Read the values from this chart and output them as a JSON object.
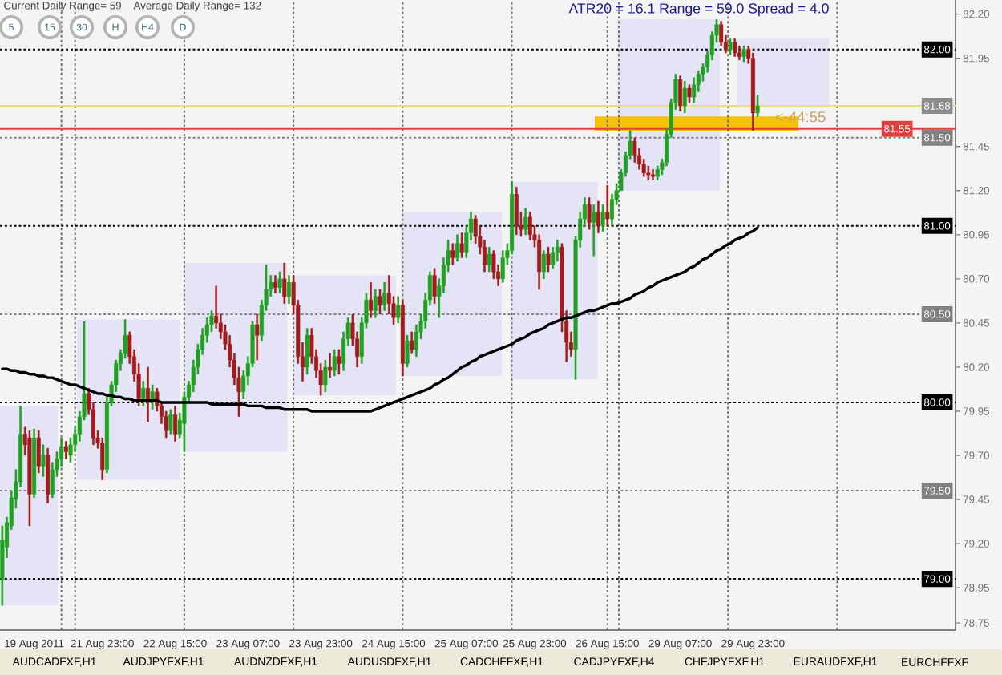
{
  "chart_data": {
    "type": "candlestick",
    "title": "ATR20 = 16.1 Range = 59.0 Spread = 4.0",
    "annotations": [
      "Current Daily Range= 59",
      "Average Daily Range= 132",
      "5",
      "15",
      "30",
      "H",
      "H4",
      "D",
      "<-44:55",
      "AUDCADFXF,H1",
      "AUDJPYFXF,H1",
      "AUDNZDFXF,H1",
      "AUDUSDFXF,H1",
      "CADCHFFXF,H1",
      "CADJPYFXF,H4",
      "CHFJPYFXF,H1",
      "EURAUDFXF,H1",
      "EURCHFFXF"
    ],
    "categories": [
      null,
      null,
      null,
      null,
      null,
      null,
      null,
      "19 Aug 2011",
      null,
      null,
      null,
      null,
      null,
      null,
      null,
      null,
      null,
      null,
      null,
      null,
      null,
      null,
      "21 Aug 23:00",
      null,
      null,
      null,
      null,
      null,
      null,
      null,
      null,
      null,
      null,
      null,
      null,
      null,
      null,
      null,
      "22 Aug 15:00",
      null,
      null,
      null,
      null,
      null,
      null,
      null,
      null,
      null,
      null,
      null,
      null,
      null,
      null,
      null,
      "23 Aug 07:00",
      null,
      null,
      null,
      null,
      null,
      null,
      null,
      null,
      null,
      null,
      null,
      null,
      null,
      null,
      null,
      "23 Aug 23:00",
      null,
      null,
      null,
      null,
      null,
      null,
      null,
      null,
      null,
      null,
      null,
      null,
      null,
      null,
      null,
      "24 Aug 15:00",
      null,
      null,
      null,
      null,
      null,
      null,
      null,
      null,
      null,
      null,
      null,
      null,
      null,
      null,
      null,
      "25 Aug 07:00",
      null,
      null,
      null,
      null,
      null,
      null,
      null,
      null,
      null,
      null,
      null,
      null,
      null,
      null,
      "25 Aug 23:00",
      null,
      null,
      null,
      null,
      null,
      null,
      null,
      null,
      null,
      null,
      null,
      null,
      null,
      null,
      null,
      "26 Aug 15:00",
      null,
      null,
      null,
      null,
      null,
      null,
      null,
      null,
      null,
      null,
      null,
      null,
      null,
      null,
      null,
      "29 Aug 07:00",
      null,
      null,
      null,
      null,
      null,
      null,
      null,
      null,
      null,
      null,
      null,
      null,
      null,
      null,
      null,
      "29 Aug 23:00",
      null,
      null,
      null,
      null,
      null,
      null,
      null,
      null,
      null,
      null,
      null,
      null,
      null,
      null,
      null,
      null,
      null,
      null,
      null,
      null,
      null,
      null,
      null,
      null,
      null,
      null,
      null,
      null,
      null,
      null,
      null,
      null,
      null,
      null,
      null,
      null,
      null,
      null,
      null,
      null,
      null,
      null,
      null,
      null
    ],
    "ylim": [
      78.71,
      82.28
    ],
    "yticks": [
      {
        "value": 82.2,
        "label": "82.20"
      },
      {
        "value": 81.95,
        "label": "81.95"
      },
      {
        "value": 81.45,
        "label": "81.45"
      },
      {
        "value": 81.2,
        "label": "81.20"
      },
      {
        "value": 80.95,
        "label": "80.95"
      },
      {
        "value": 80.7,
        "label": "80.70"
      },
      {
        "value": 80.45,
        "label": "80.45"
      },
      {
        "value": 80.2,
        "label": "80.20"
      },
      {
        "value": 79.95,
        "label": "79.95"
      },
      {
        "value": 79.7,
        "label": "79.70"
      },
      {
        "value": 79.45,
        "label": "79.45"
      },
      {
        "value": 79.2,
        "label": "79.20"
      },
      {
        "value": 78.95,
        "label": "78.95"
      },
      {
        "value": 78.75,
        "label": "78.75"
      }
    ],
    "ref_lines": [
      {
        "axis": "y",
        "value": 82.0,
        "label": "82.00",
        "color": "#000000",
        "line_style": "dotted"
      },
      {
        "axis": "y",
        "value": 81.5,
        "label": "81.50",
        "color": "#808080",
        "line_style": "dotted"
      },
      {
        "axis": "y",
        "value": 81.0,
        "label": "81.00",
        "color": "#000000",
        "line_style": "dotted"
      },
      {
        "axis": "y",
        "value": 80.5,
        "label": "80.50",
        "color": "#808080",
        "line_style": "dotted"
      },
      {
        "axis": "y",
        "value": 80.0,
        "label": "80.00",
        "color": "#000000",
        "line_style": "dotted"
      },
      {
        "axis": "y",
        "value": 79.5,
        "label": "79.50",
        "color": "#808080",
        "line_style": "dotted"
      },
      {
        "axis": "y",
        "value": 79.0,
        "label": "79.00",
        "color": "#000000",
        "line_style": "dotted"
      },
      {
        "axis": "y",
        "value": 81.68,
        "label": "81.68",
        "color": "#eedc82",
        "line_style": "solid"
      },
      {
        "axis": "y",
        "value": 81.55,
        "label": "81.55",
        "color": "#e04040",
        "line_style": "solid"
      }
    ],
    "bands": [
      {
        "axis": "y",
        "from": 78.85,
        "to": 79.98,
        "color": "#e4e4f6"
      },
      {
        "axis": "y",
        "from": 79.56,
        "to": 80.47,
        "color": "#e4e4f6"
      },
      {
        "axis": "y",
        "from": 79.72,
        "to": 80.79,
        "color": "#e4e4f6"
      },
      {
        "axis": "y",
        "from": 80.04,
        "to": 80.72,
        "color": "#e4e4f6"
      },
      {
        "axis": "y",
        "from": 80.15,
        "to": 81.08,
        "color": "#e4e4f6"
      },
      {
        "axis": "y",
        "from": 80.13,
        "to": 81.25,
        "color": "#e4e4f6"
      },
      {
        "axis": "y",
        "from": 81.2,
        "to": 82.17,
        "color": "#e4e4f6"
      },
      {
        "axis": "y",
        "from": 81.67,
        "to": 82.06,
        "color": "#e4e4f6"
      },
      {
        "axis": "y",
        "from": 81.54,
        "to": 81.62,
        "color": "#f4c20d"
      }
    ],
    "series": [
      {
        "ohlc": [
          [
            79.0,
            79.3,
            78.85,
            79.22
          ],
          [
            79.18,
            79.35,
            79.12,
            79.32
          ],
          [
            79.3,
            79.5,
            79.28,
            79.46
          ],
          [
            79.45,
            79.62,
            79.4,
            79.55
          ],
          [
            79.55,
            79.98,
            79.52,
            79.82
          ],
          [
            79.82,
            79.86,
            79.7,
            79.76
          ],
          [
            79.8,
            79.84,
            79.3,
            79.48
          ],
          [
            79.48,
            79.85,
            79.46,
            79.8
          ],
          [
            79.8,
            79.84,
            79.6,
            79.64
          ],
          [
            79.64,
            79.76,
            79.58,
            79.7
          ],
          [
            79.7,
            79.74,
            79.43,
            79.48
          ],
          [
            79.48,
            79.66,
            79.46,
            79.62
          ],
          [
            79.62,
            79.72,
            79.58,
            79.68
          ],
          [
            79.68,
            79.8,
            79.64,
            79.75
          ],
          [
            79.75,
            79.78,
            79.68,
            79.72
          ],
          [
            79.7,
            79.8,
            79.66,
            79.76
          ],
          [
            79.76,
            79.86,
            79.72,
            79.82
          ],
          [
            79.82,
            79.95,
            79.78,
            79.92
          ],
          [
            79.92,
            80.46,
            79.9,
            80.05
          ],
          [
            80.05,
            80.08,
            79.93,
            79.96
          ],
          [
            79.96,
            80.0,
            79.76,
            79.8
          ],
          [
            79.8,
            79.84,
            79.74,
            79.77
          ],
          [
            79.77,
            79.8,
            79.56,
            79.62
          ],
          [
            79.62,
            80.03,
            79.6,
            80.0
          ],
          [
            80.0,
            80.12,
            79.98,
            80.1
          ],
          [
            80.1,
            80.24,
            80.06,
            80.22
          ],
          [
            80.22,
            80.3,
            80.18,
            80.28
          ],
          [
            80.28,
            80.47,
            80.25,
            80.38
          ],
          [
            80.38,
            80.4,
            80.22,
            80.26
          ],
          [
            80.26,
            80.3,
            80.12,
            80.16
          ],
          [
            80.16,
            80.22,
            79.98,
            80.02
          ],
          [
            80.02,
            80.12,
            79.98,
            80.08
          ],
          [
            80.08,
            80.2,
            79.89,
            80.0
          ],
          [
            80.0,
            80.1,
            79.96,
            80.06
          ],
          [
            80.06,
            80.08,
            79.95,
            79.98
          ],
          [
            79.98,
            80.0,
            79.88,
            79.92
          ],
          [
            79.92,
            79.95,
            79.8,
            79.84
          ],
          [
            79.84,
            79.96,
            79.82,
            79.93
          ],
          [
            79.93,
            79.98,
            79.78,
            79.82
          ],
          [
            79.82,
            79.94,
            79.8,
            79.9
          ],
          [
            79.88,
            80.06,
            79.72,
            80.03
          ],
          [
            80.03,
            80.12,
            80.0,
            80.1
          ],
          [
            80.1,
            80.24,
            80.06,
            80.2
          ],
          [
            80.2,
            80.33,
            80.16,
            80.3
          ],
          [
            80.3,
            80.42,
            80.27,
            80.38
          ],
          [
            80.38,
            80.48,
            80.34,
            80.44
          ],
          [
            80.44,
            80.52,
            80.4,
            80.49
          ],
          [
            80.49,
            80.66,
            80.42,
            80.45
          ],
          [
            80.45,
            80.5,
            80.36,
            80.4
          ],
          [
            80.4,
            80.44,
            80.3,
            80.33
          ],
          [
            80.33,
            80.38,
            80.2,
            80.24
          ],
          [
            80.24,
            80.28,
            80.1,
            80.14
          ],
          [
            80.14,
            80.2,
            79.92,
            80.06
          ],
          [
            80.06,
            80.18,
            80.02,
            80.15
          ],
          [
            80.15,
            80.26,
            80.1,
            80.22
          ],
          [
            80.22,
            80.46,
            80.2,
            80.44
          ],
          [
            80.44,
            80.5,
            80.24,
            80.38
          ],
          [
            80.38,
            80.58,
            80.35,
            80.55
          ],
          [
            80.55,
            80.78,
            80.52,
            80.64
          ],
          [
            80.64,
            80.72,
            80.6,
            80.68
          ],
          [
            80.68,
            80.72,
            80.62,
            80.65
          ],
          [
            80.65,
            80.74,
            80.62,
            80.7
          ],
          [
            80.7,
            80.79,
            80.56,
            80.6
          ],
          [
            80.6,
            80.72,
            80.56,
            80.68
          ],
          [
            80.68,
            80.72,
            80.5,
            80.55
          ],
          [
            80.55,
            80.58,
            80.22,
            80.26
          ],
          [
            80.26,
            80.34,
            80.12,
            80.2
          ],
          [
            80.2,
            80.42,
            80.16,
            80.38
          ],
          [
            80.38,
            80.42,
            80.22,
            80.26
          ],
          [
            80.26,
            80.3,
            80.14,
            80.18
          ],
          [
            80.18,
            80.22,
            80.04,
            80.1
          ],
          [
            80.1,
            80.24,
            80.06,
            80.2
          ],
          [
            80.2,
            80.28,
            80.14,
            80.18
          ],
          [
            80.18,
            80.3,
            80.15,
            80.26
          ],
          [
            80.26,
            80.3,
            80.16,
            80.22
          ],
          [
            80.22,
            80.4,
            80.18,
            80.36
          ],
          [
            80.36,
            80.48,
            80.32,
            80.45
          ],
          [
            80.45,
            80.5,
            80.32,
            80.36
          ],
          [
            80.36,
            80.4,
            80.2,
            80.26
          ],
          [
            80.26,
            80.48,
            80.22,
            80.45
          ],
          [
            80.45,
            80.62,
            80.42,
            80.58
          ],
          [
            80.58,
            80.68,
            80.48,
            80.52
          ],
          [
            80.52,
            80.64,
            80.48,
            80.6
          ],
          [
            80.6,
            80.64,
            80.5,
            80.55
          ],
          [
            80.55,
            80.68,
            80.52,
            80.62
          ],
          [
            80.62,
            80.72,
            80.5,
            80.56
          ],
          [
            80.56,
            80.6,
            80.44,
            80.48
          ],
          [
            80.48,
            80.6,
            80.45,
            80.55
          ],
          [
            80.55,
            80.58,
            80.15,
            80.22
          ],
          [
            80.22,
            80.38,
            80.2,
            80.35
          ],
          [
            80.35,
            80.4,
            80.28,
            80.3
          ],
          [
            80.3,
            80.44,
            80.26,
            80.4
          ],
          [
            80.4,
            80.5,
            80.36,
            80.46
          ],
          [
            80.46,
            80.62,
            80.42,
            80.58
          ],
          [
            80.58,
            80.74,
            80.55,
            80.72
          ],
          [
            80.72,
            80.76,
            80.56,
            80.6
          ],
          [
            80.6,
            80.7,
            80.48,
            80.66
          ],
          [
            80.66,
            80.82,
            80.62,
            80.78
          ],
          [
            80.78,
            80.92,
            80.74,
            80.86
          ],
          [
            80.86,
            80.9,
            80.78,
            80.82
          ],
          [
            80.82,
            80.95,
            80.8,
            80.9
          ],
          [
            80.9,
            80.96,
            80.82,
            80.85
          ],
          [
            80.85,
            81.0,
            80.82,
            80.96
          ],
          [
            80.96,
            81.08,
            80.92,
            81.04
          ],
          [
            81.04,
            81.06,
            80.9,
            80.94
          ],
          [
            80.94,
            81.0,
            80.84,
            80.88
          ],
          [
            80.88,
            80.92,
            80.74,
            80.78
          ],
          [
            80.78,
            80.88,
            80.74,
            80.84
          ],
          [
            80.84,
            80.86,
            80.7,
            80.74
          ],
          [
            80.74,
            80.78,
            80.66,
            80.7
          ],
          [
            80.7,
            80.86,
            80.68,
            80.82
          ],
          [
            80.82,
            80.9,
            80.78,
            80.86
          ],
          [
            80.86,
            81.25,
            80.84,
            81.18
          ],
          [
            81.18,
            81.22,
            80.95,
            81.0
          ],
          [
            81.0,
            81.08,
            80.94,
            80.98
          ],
          [
            80.98,
            81.1,
            80.95,
            81.05
          ],
          [
            81.05,
            81.08,
            80.92,
            80.95
          ],
          [
            80.95,
            81.0,
            80.88,
            80.92
          ],
          [
            80.92,
            80.95,
            80.64,
            80.74
          ],
          [
            80.74,
            80.86,
            80.7,
            80.84
          ],
          [
            80.84,
            80.88,
            80.74,
            80.78
          ],
          [
            80.78,
            80.88,
            80.76,
            80.85
          ],
          [
            80.85,
            80.92,
            80.8,
            80.88
          ],
          [
            80.88,
            80.9,
            80.4,
            80.46
          ],
          [
            80.46,
            80.52,
            80.23,
            80.34
          ],
          [
            80.34,
            80.4,
            80.26,
            80.3
          ],
          [
            80.3,
            80.94,
            80.13,
            80.92
          ],
          [
            80.92,
            81.08,
            80.88,
            81.04
          ],
          [
            81.04,
            81.16,
            81.0,
            81.12
          ],
          [
            81.12,
            81.16,
            80.98,
            81.02
          ],
          [
            81.02,
            81.12,
            80.83,
            81.08
          ],
          [
            81.08,
            81.14,
            80.96,
            81.0
          ],
          [
            81.0,
            81.12,
            80.97,
            81.08
          ],
          [
            81.08,
            81.23,
            81.0,
            81.04
          ],
          [
            81.04,
            81.18,
            81.0,
            81.15
          ],
          [
            81.15,
            81.24,
            81.12,
            81.2
          ],
          [
            81.2,
            81.32,
            81.2,
            81.3
          ],
          [
            81.3,
            81.42,
            81.28,
            81.4
          ],
          [
            81.4,
            81.54,
            81.38,
            81.48
          ],
          [
            81.48,
            81.5,
            81.36,
            81.4
          ],
          [
            81.4,
            81.44,
            81.32,
            81.35
          ],
          [
            81.35,
            81.38,
            81.28,
            81.3
          ],
          [
            81.3,
            81.34,
            81.26,
            81.29
          ],
          [
            81.29,
            81.32,
            81.26,
            81.28
          ],
          [
            81.28,
            81.34,
            81.26,
            81.32
          ],
          [
            81.32,
            81.38,
            81.29,
            81.36
          ],
          [
            81.36,
            81.55,
            81.34,
            81.52
          ],
          [
            81.52,
            81.72,
            81.5,
            81.7
          ],
          [
            81.7,
            81.86,
            81.66,
            81.83
          ],
          [
            81.83,
            81.85,
            81.65,
            81.68
          ],
          [
            81.68,
            81.82,
            81.64,
            81.78
          ],
          [
            81.78,
            81.8,
            81.7,
            81.73
          ],
          [
            81.73,
            81.84,
            81.7,
            81.8
          ],
          [
            81.8,
            81.88,
            81.76,
            81.86
          ],
          [
            81.86,
            81.92,
            81.82,
            81.9
          ],
          [
            81.9,
            81.99,
            81.87,
            81.97
          ],
          [
            81.97,
            82.1,
            81.94,
            82.08
          ],
          [
            82.08,
            82.17,
            82.04,
            82.14
          ],
          [
            82.14,
            82.16,
            82.02,
            82.04
          ],
          [
            82.04,
            82.08,
            81.98,
            82.0
          ],
          [
            82.0,
            82.06,
            81.97,
            82.04
          ],
          [
            82.04,
            82.06,
            81.96,
            81.98
          ],
          [
            81.98,
            82.02,
            81.94,
            81.96
          ],
          [
            81.96,
            82.02,
            81.93,
            82.0
          ],
          [
            82.0,
            82.02,
            81.92,
            81.95
          ],
          [
            81.95,
            81.98,
            81.54,
            81.64
          ],
          [
            81.64,
            81.74,
            81.62,
            81.68
          ],
          null,
          null,
          null,
          null,
          null,
          null,
          null,
          null,
          null,
          null,
          null,
          null,
          null,
          null,
          null,
          null,
          null,
          null,
          null,
          null,
          null,
          null,
          null,
          null,
          null,
          null,
          null,
          null,
          null,
          null,
          null,
          null,
          null,
          null,
          null,
          null,
          null,
          null,
          null,
          null,
          null,
          null,
          null
        ],
        "colors": [
          "#20a020",
          "#20a020",
          "#20a020",
          "#20a020",
          "#20a020",
          "#a01c1c",
          "#a01c1c",
          "#20a020",
          "#a01c1c",
          "#20a020",
          "#a01c1c",
          "#20a020",
          "#20a020",
          "#20a020",
          "#a01c1c",
          "#20a020",
          "#20a020",
          "#20a020",
          "#20a020",
          "#a01c1c",
          "#a01c1c",
          "#a01c1c",
          "#a01c1c",
          "#20a020",
          "#20a020",
          "#20a020",
          "#20a020",
          "#20a020",
          "#a01c1c",
          "#a01c1c",
          "#a01c1c",
          "#20a020",
          "#a01c1c",
          "#20a020",
          "#a01c1c",
          "#a01c1c",
          "#a01c1c",
          "#20a020",
          "#a01c1c",
          "#20a020",
          "#20a020",
          "#20a020",
          "#20a020",
          "#20a020",
          "#20a020",
          "#20a020",
          "#20a020",
          "#a01c1c",
          "#a01c1c",
          "#a01c1c",
          "#a01c1c",
          "#a01c1c",
          "#a01c1c",
          "#20a020",
          "#20a020",
          "#20a020",
          "#a01c1c",
          "#20a020",
          "#20a020",
          "#20a020",
          "#a01c1c",
          "#20a020",
          "#a01c1c",
          "#20a020",
          "#a01c1c",
          "#a01c1c",
          "#a01c1c",
          "#20a020",
          "#a01c1c",
          "#a01c1c",
          "#a01c1c",
          "#20a020",
          "#a01c1c",
          "#20a020",
          "#a01c1c",
          "#20a020",
          "#20a020",
          "#a01c1c",
          "#a01c1c",
          "#20a020",
          "#20a020",
          "#a01c1c",
          "#20a020",
          "#a01c1c",
          "#20a020",
          "#a01c1c",
          "#a01c1c",
          "#20a020",
          "#a01c1c",
          "#20a020",
          "#a01c1c",
          "#20a020",
          "#20a020",
          "#20a020",
          "#20a020",
          "#a01c1c",
          "#20a020",
          "#20a020",
          "#20a020",
          "#a01c1c",
          "#20a020",
          "#a01c1c",
          "#20a020",
          "#20a020",
          "#a01c1c",
          "#a01c1c",
          "#a01c1c",
          "#20a020",
          "#a01c1c",
          "#a01c1c",
          "#20a020",
          "#20a020",
          "#20a020",
          "#a01c1c",
          "#a01c1c",
          "#20a020",
          "#a01c1c",
          "#a01c1c",
          "#a01c1c",
          "#20a020",
          "#a01c1c",
          "#20a020",
          "#20a020",
          "#a01c1c",
          "#a01c1c",
          "#a01c1c",
          "#20a020",
          "#20a020",
          "#20a020",
          "#a01c1c",
          "#20a020",
          "#a01c1c",
          "#20a020",
          "#a01c1c",
          "#20a020",
          "#20a020",
          "#20a020",
          "#20a020",
          "#20a020",
          "#a01c1c",
          "#a01c1c",
          "#a01c1c",
          "#a01c1c",
          "#a01c1c",
          "#20a020",
          "#20a020",
          "#20a020",
          "#20a020",
          "#20a020",
          "#a01c1c",
          "#20a020",
          "#a01c1c",
          "#20a020",
          "#20a020",
          "#20a020",
          "#20a020",
          "#20a020",
          "#20a020",
          "#a01c1c",
          "#a01c1c",
          "#20a020",
          "#a01c1c",
          "#a01c1c",
          "#20a020",
          "#a01c1c",
          "#a01c1c",
          "#20a020",
          null,
          null,
          null,
          null,
          null,
          null,
          null,
          null,
          null,
          null,
          null,
          null,
          null,
          null,
          null,
          null,
          null,
          null,
          null,
          null,
          null,
          null,
          null,
          null,
          null,
          null,
          null,
          null,
          null,
          null,
          null,
          null,
          null,
          null,
          null,
          null,
          null,
          null,
          null,
          null,
          null,
          null,
          null
        ]
      },
      {
        "type": "line",
        "color": "#000000",
        "values": [
          80.19,
          80.19,
          80.18,
          80.18,
          80.17,
          80.17,
          80.16,
          80.16,
          80.15,
          80.15,
          80.14,
          80.14,
          80.13,
          80.12,
          80.11,
          80.1,
          80.1,
          80.09,
          80.08,
          80.07,
          80.06,
          80.05,
          80.05,
          80.04,
          80.04,
          80.03,
          80.03,
          80.02,
          80.02,
          80.01,
          80.01,
          80.01,
          80.01,
          80.01,
          80.01,
          80.0,
          80.0,
          80.0,
          80.0,
          80.0,
          80.0,
          80.0,
          80.0,
          80.0,
          80.0,
          80.0,
          79.99,
          79.99,
          79.99,
          79.99,
          79.99,
          79.99,
          79.99,
          79.99,
          79.98,
          79.98,
          79.98,
          79.98,
          79.97,
          79.97,
          79.97,
          79.97,
          79.96,
          79.96,
          79.96,
          79.96,
          79.96,
          79.96,
          79.95,
          79.95,
          79.95,
          79.95,
          79.95,
          79.95,
          79.95,
          79.95,
          79.95,
          79.95,
          79.95,
          79.95,
          79.95,
          79.95,
          79.96,
          79.97,
          79.98,
          79.99,
          80.0,
          80.01,
          80.02,
          80.03,
          80.04,
          80.05,
          80.06,
          80.07,
          80.08,
          80.1,
          80.11,
          80.13,
          80.14,
          80.16,
          80.18,
          80.2,
          80.21,
          80.23,
          80.24,
          80.26,
          80.27,
          80.28,
          80.29,
          80.3,
          80.31,
          80.32,
          80.33,
          80.35,
          80.36,
          80.37,
          80.39,
          80.4,
          80.41,
          80.42,
          80.44,
          80.45,
          80.46,
          80.47,
          80.48,
          80.48,
          80.49,
          80.5,
          80.51,
          80.52,
          80.52,
          80.53,
          80.54,
          80.55,
          80.56,
          80.56,
          80.57,
          80.58,
          80.59,
          80.61,
          80.62,
          80.63,
          80.65,
          80.66,
          80.68,
          80.69,
          80.7,
          80.71,
          80.72,
          80.73,
          80.74,
          80.76,
          80.77,
          80.79,
          80.81,
          80.82,
          80.84,
          80.86,
          80.87,
          80.89,
          80.9,
          80.92,
          80.93,
          80.94,
          80.96,
          80.97,
          80.99,
          null,
          null,
          null,
          null,
          null,
          null,
          null,
          null,
          null,
          null,
          null,
          null,
          null,
          null,
          null,
          null,
          null,
          null,
          null,
          null,
          null,
          null,
          null,
          null,
          null,
          null,
          null,
          null,
          null,
          null,
          null,
          null,
          null,
          null,
          null,
          null,
          null,
          null,
          null,
          null,
          null,
          null,
          null
        ]
      }
    ]
  }
}
